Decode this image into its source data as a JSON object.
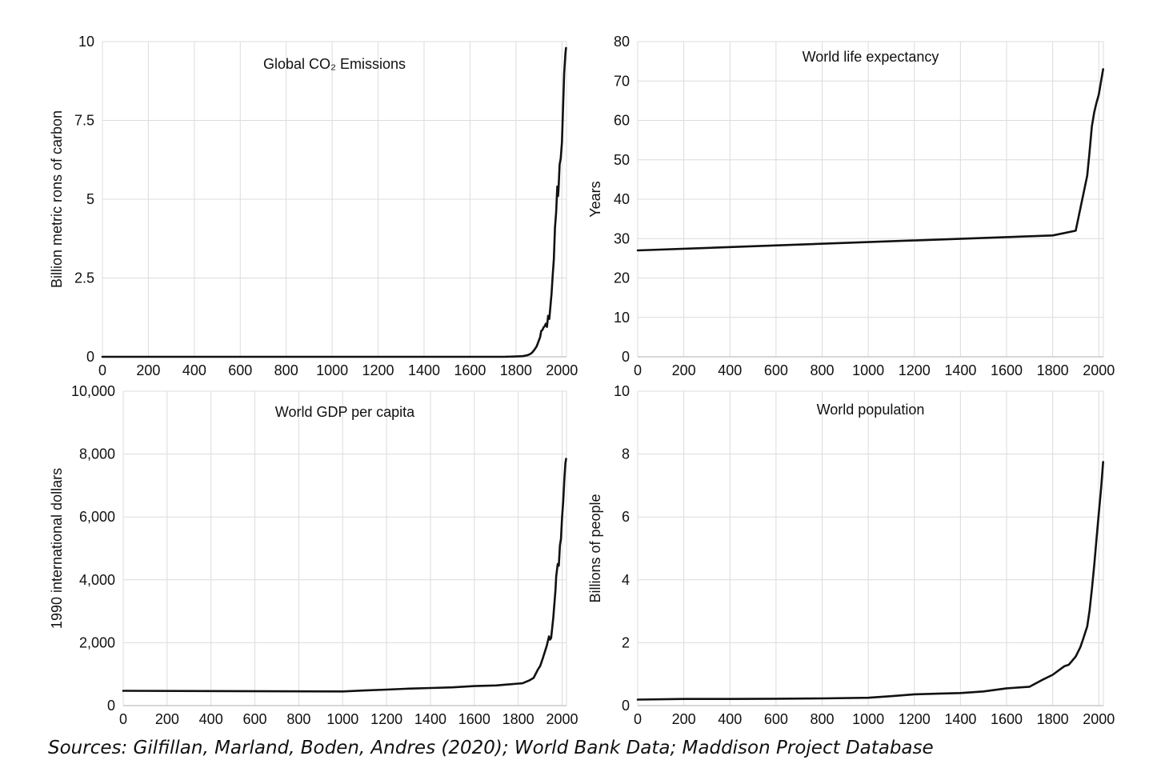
{
  "chart_data": [
    {
      "type": "line",
      "title": "Global CO₂ Emissions",
      "xlabel": "",
      "ylabel": "Billion metric rons of carbon",
      "xlim": [
        0,
        2020
      ],
      "ylim": [
        0,
        10
      ],
      "x_ticks": [
        0,
        200,
        400,
        600,
        800,
        1000,
        1200,
        1400,
        1600,
        1800,
        2000
      ],
      "x_tick_labels": [
        "0",
        "200",
        "400",
        "600",
        "800",
        "1000",
        "1200",
        "1400",
        "1600",
        "1800",
        "2000"
      ],
      "y_ticks": [
        0,
        2.5,
        5,
        7.5,
        10
      ],
      "y_tick_labels": [
        "0",
        "2.5",
        "5",
        "7.5",
        "10"
      ],
      "grid": true,
      "series": [
        {
          "color": "#111111",
          "x": [
            0,
            1750,
            1800,
            1830,
            1850,
            1860,
            1870,
            1880,
            1890,
            1900,
            1905,
            1910,
            1915,
            1920,
            1925,
            1930,
            1935,
            1940,
            1945,
            1950,
            1955,
            1960,
            1965,
            1970,
            1975,
            1980,
            1983,
            1985,
            1990,
            1995,
            2000,
            2005,
            2010,
            2015,
            2018
          ],
          "y": [
            0,
            0,
            0.01,
            0.02,
            0.05,
            0.08,
            0.13,
            0.22,
            0.33,
            0.52,
            0.62,
            0.82,
            0.85,
            0.93,
            0.97,
            1.05,
            0.95,
            1.3,
            1.2,
            1.6,
            2.0,
            2.6,
            3.1,
            4.1,
            4.6,
            5.4,
            5.1,
            5.3,
            6.1,
            6.3,
            6.8,
            7.9,
            9.0,
            9.6,
            9.8
          ]
        }
      ]
    },
    {
      "type": "line",
      "title": "World life expectancy",
      "xlabel": "",
      "ylabel": "Years",
      "xlim": [
        0,
        2020
      ],
      "ylim": [
        0,
        80
      ],
      "x_ticks": [
        0,
        200,
        400,
        600,
        800,
        1000,
        1200,
        1400,
        1600,
        1800,
        2000
      ],
      "x_tick_labels": [
        "0",
        "200",
        "400",
        "600",
        "800",
        "1000",
        "1200",
        "1400",
        "1600",
        "1800",
        "2000"
      ],
      "y_ticks": [
        0,
        10,
        20,
        30,
        40,
        50,
        60,
        70,
        80
      ],
      "y_tick_labels": [
        "0",
        "10",
        "20",
        "30",
        "40",
        "50",
        "60",
        "70",
        "80"
      ],
      "grid": true,
      "series": [
        {
          "color": "#111111",
          "x": [
            0,
            1800,
            1900,
            1950,
            1960,
            1970,
            1980,
            1990,
            2000,
            2010,
            2019
          ],
          "y": [
            27,
            30.8,
            32,
            46,
            52,
            58.5,
            62,
            64.5,
            66.5,
            70,
            73
          ]
        }
      ]
    },
    {
      "type": "line",
      "title": "World GDP per capita",
      "xlabel": "",
      "ylabel": "1990 international dollars",
      "xlim": [
        0,
        2020
      ],
      "ylim": [
        0,
        10000
      ],
      "x_ticks": [
        0,
        200,
        400,
        600,
        800,
        1000,
        1200,
        1400,
        1600,
        1800,
        2000
      ],
      "x_tick_labels": [
        "0",
        "200",
        "400",
        "600",
        "800",
        "1000",
        "1200",
        "1400",
        "1600",
        "1800",
        "2000"
      ],
      "y_ticks": [
        0,
        2000,
        4000,
        6000,
        8000,
        10000
      ],
      "y_tick_labels": [
        "0",
        "2,000",
        "4,000",
        "6,000",
        "8,000",
        "10,000"
      ],
      "grid": true,
      "series": [
        {
          "color": "#111111",
          "x": [
            0,
            1000,
            1100,
            1200,
            1300,
            1400,
            1500,
            1600,
            1700,
            1800,
            1820,
            1850,
            1870,
            1890,
            1900,
            1913,
            1930,
            1940,
            1945,
            1950,
            1960,
            1970,
            1973,
            1980,
            1985,
            1990,
            1995,
            2000,
            2005,
            2010,
            2015,
            2018
          ],
          "y": [
            470,
            450,
            480,
            510,
            540,
            560,
            580,
            620,
            640,
            700,
            710,
            800,
            880,
            1150,
            1260,
            1530,
            1900,
            2200,
            2100,
            2150,
            2800,
            3700,
            4100,
            4500,
            4450,
            5100,
            5300,
            6000,
            6500,
            7200,
            7700,
            7850
          ]
        }
      ]
    },
    {
      "type": "line",
      "title": "World population",
      "xlabel": "",
      "ylabel": "Billions of people",
      "xlim": [
        0,
        2020
      ],
      "ylim": [
        0,
        10
      ],
      "x_ticks": [
        0,
        200,
        400,
        600,
        800,
        1000,
        1200,
        1400,
        1600,
        1800,
        2000
      ],
      "x_tick_labels": [
        "0",
        "200",
        "400",
        "600",
        "800",
        "1000",
        "1200",
        "1400",
        "1600",
        "1800",
        "2000"
      ],
      "y_ticks": [
        0,
        2,
        4,
        6,
        8,
        10
      ],
      "y_tick_labels": [
        "0",
        "2",
        "4",
        "6",
        "8",
        "10"
      ],
      "grid": true,
      "series": [
        {
          "color": "#111111",
          "x": [
            0,
            200,
            400,
            600,
            800,
            1000,
            1100,
            1200,
            1300,
            1400,
            1500,
            1600,
            1700,
            1750,
            1800,
            1850,
            1870,
            1900,
            1920,
            1930,
            1940,
            1950,
            1960,
            1970,
            1980,
            1990,
            2000,
            2010,
            2019
          ],
          "y": [
            0.19,
            0.21,
            0.21,
            0.22,
            0.23,
            0.25,
            0.3,
            0.36,
            0.38,
            0.4,
            0.45,
            0.55,
            0.6,
            0.8,
            0.98,
            1.25,
            1.3,
            1.56,
            1.86,
            2.07,
            2.3,
            2.52,
            3.02,
            3.7,
            4.45,
            5.3,
            6.1,
            6.9,
            7.75
          ]
        }
      ]
    }
  ],
  "source_note": "Sources: Gilfillan, Marland, Boden, Andres (2020); World Bank Data; Maddison Project Database"
}
